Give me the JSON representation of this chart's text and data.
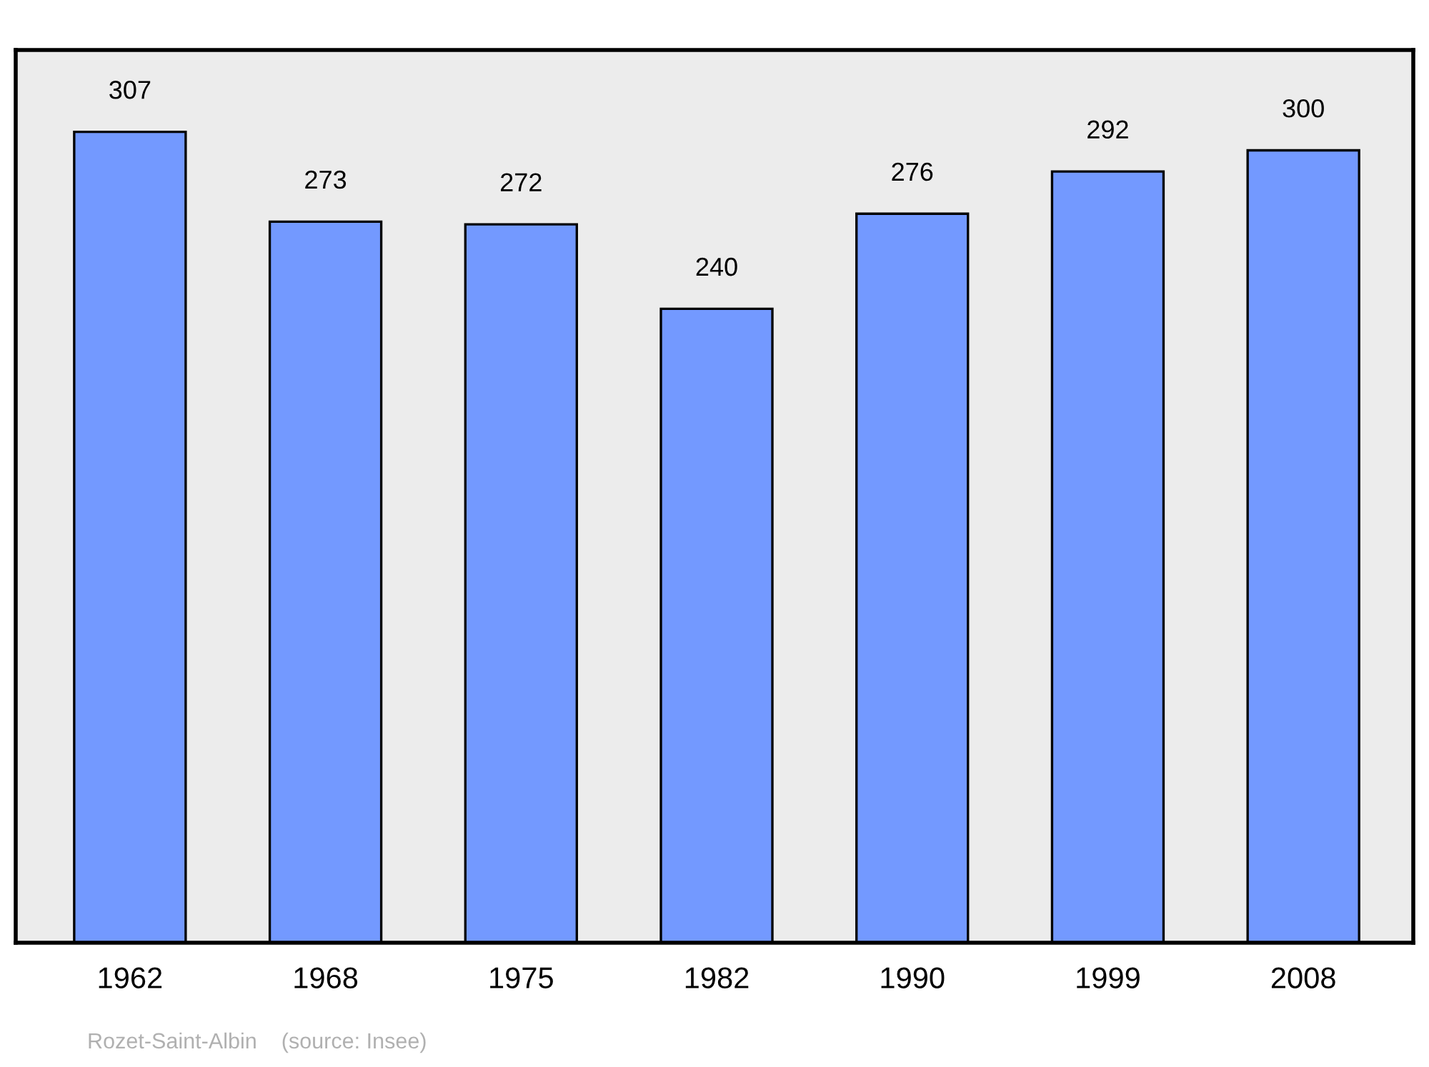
{
  "chart_data": {
    "type": "bar",
    "categories": [
      "1962",
      "1968",
      "1975",
      "1982",
      "1990",
      "1999",
      "2008"
    ],
    "values": [
      307,
      273,
      272,
      240,
      276,
      292,
      300
    ],
    "color": "#7399ff",
    "ylim": [
      0,
      338
    ],
    "data_labels": true,
    "tick_labels": "x",
    "grid": false,
    "legend": false,
    "annotations": [
      "Rozet-Saint-Albin    (source: Insee)"
    ]
  }
}
